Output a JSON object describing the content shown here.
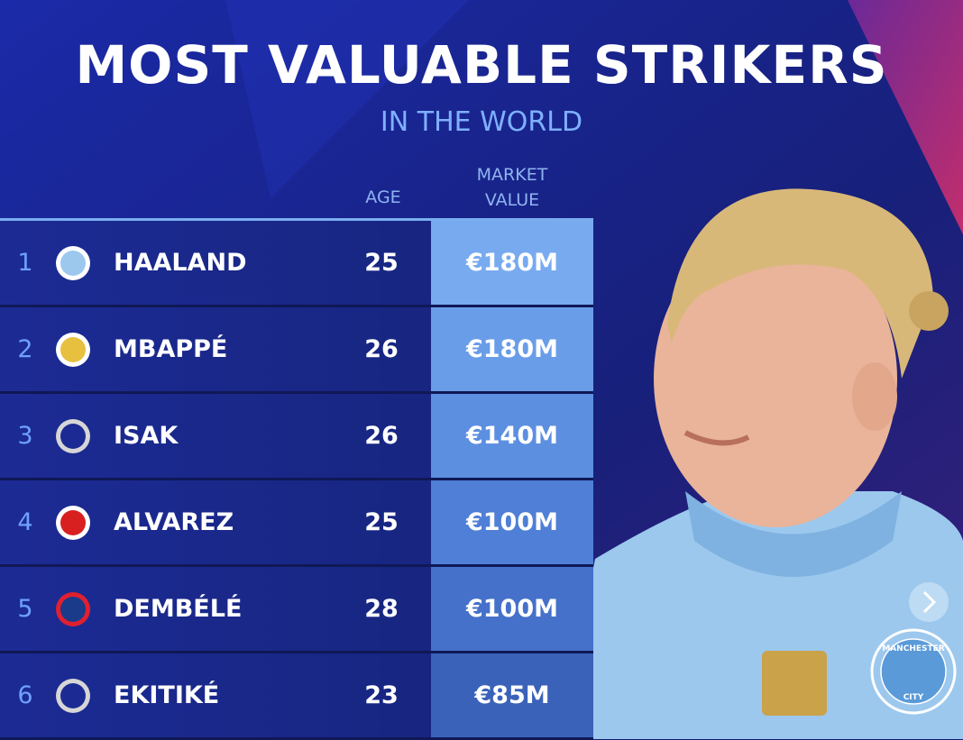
{
  "header": {
    "title": "MOST VALUABLE STRIKERS",
    "subtitle": "IN THE WORLD"
  },
  "table": {
    "columns": [
      "AGE",
      "MARKET VALUE"
    ],
    "rows": [
      {
        "rank": 1,
        "name": "HAALAND",
        "age": 25,
        "value": "€180M"
      },
      {
        "rank": 2,
        "name": "MBAPPÉ",
        "age": 26,
        "value": "€180M"
      },
      {
        "rank": 3,
        "name": "ISAK",
        "age": 26,
        "value": "€140M"
      },
      {
        "rank": 4,
        "name": "ALVAREZ",
        "age": 25,
        "value": "€100M"
      },
      {
        "rank": 5,
        "name": "DEMBÉLÉ",
        "age": 28,
        "value": "€100M"
      },
      {
        "rank": 6,
        "name": "EKITIKÉ",
        "age": 23,
        "value": "€85M"
      }
    ]
  },
  "badge": [
    "MANCHESTER",
    "CITY"
  ]
}
